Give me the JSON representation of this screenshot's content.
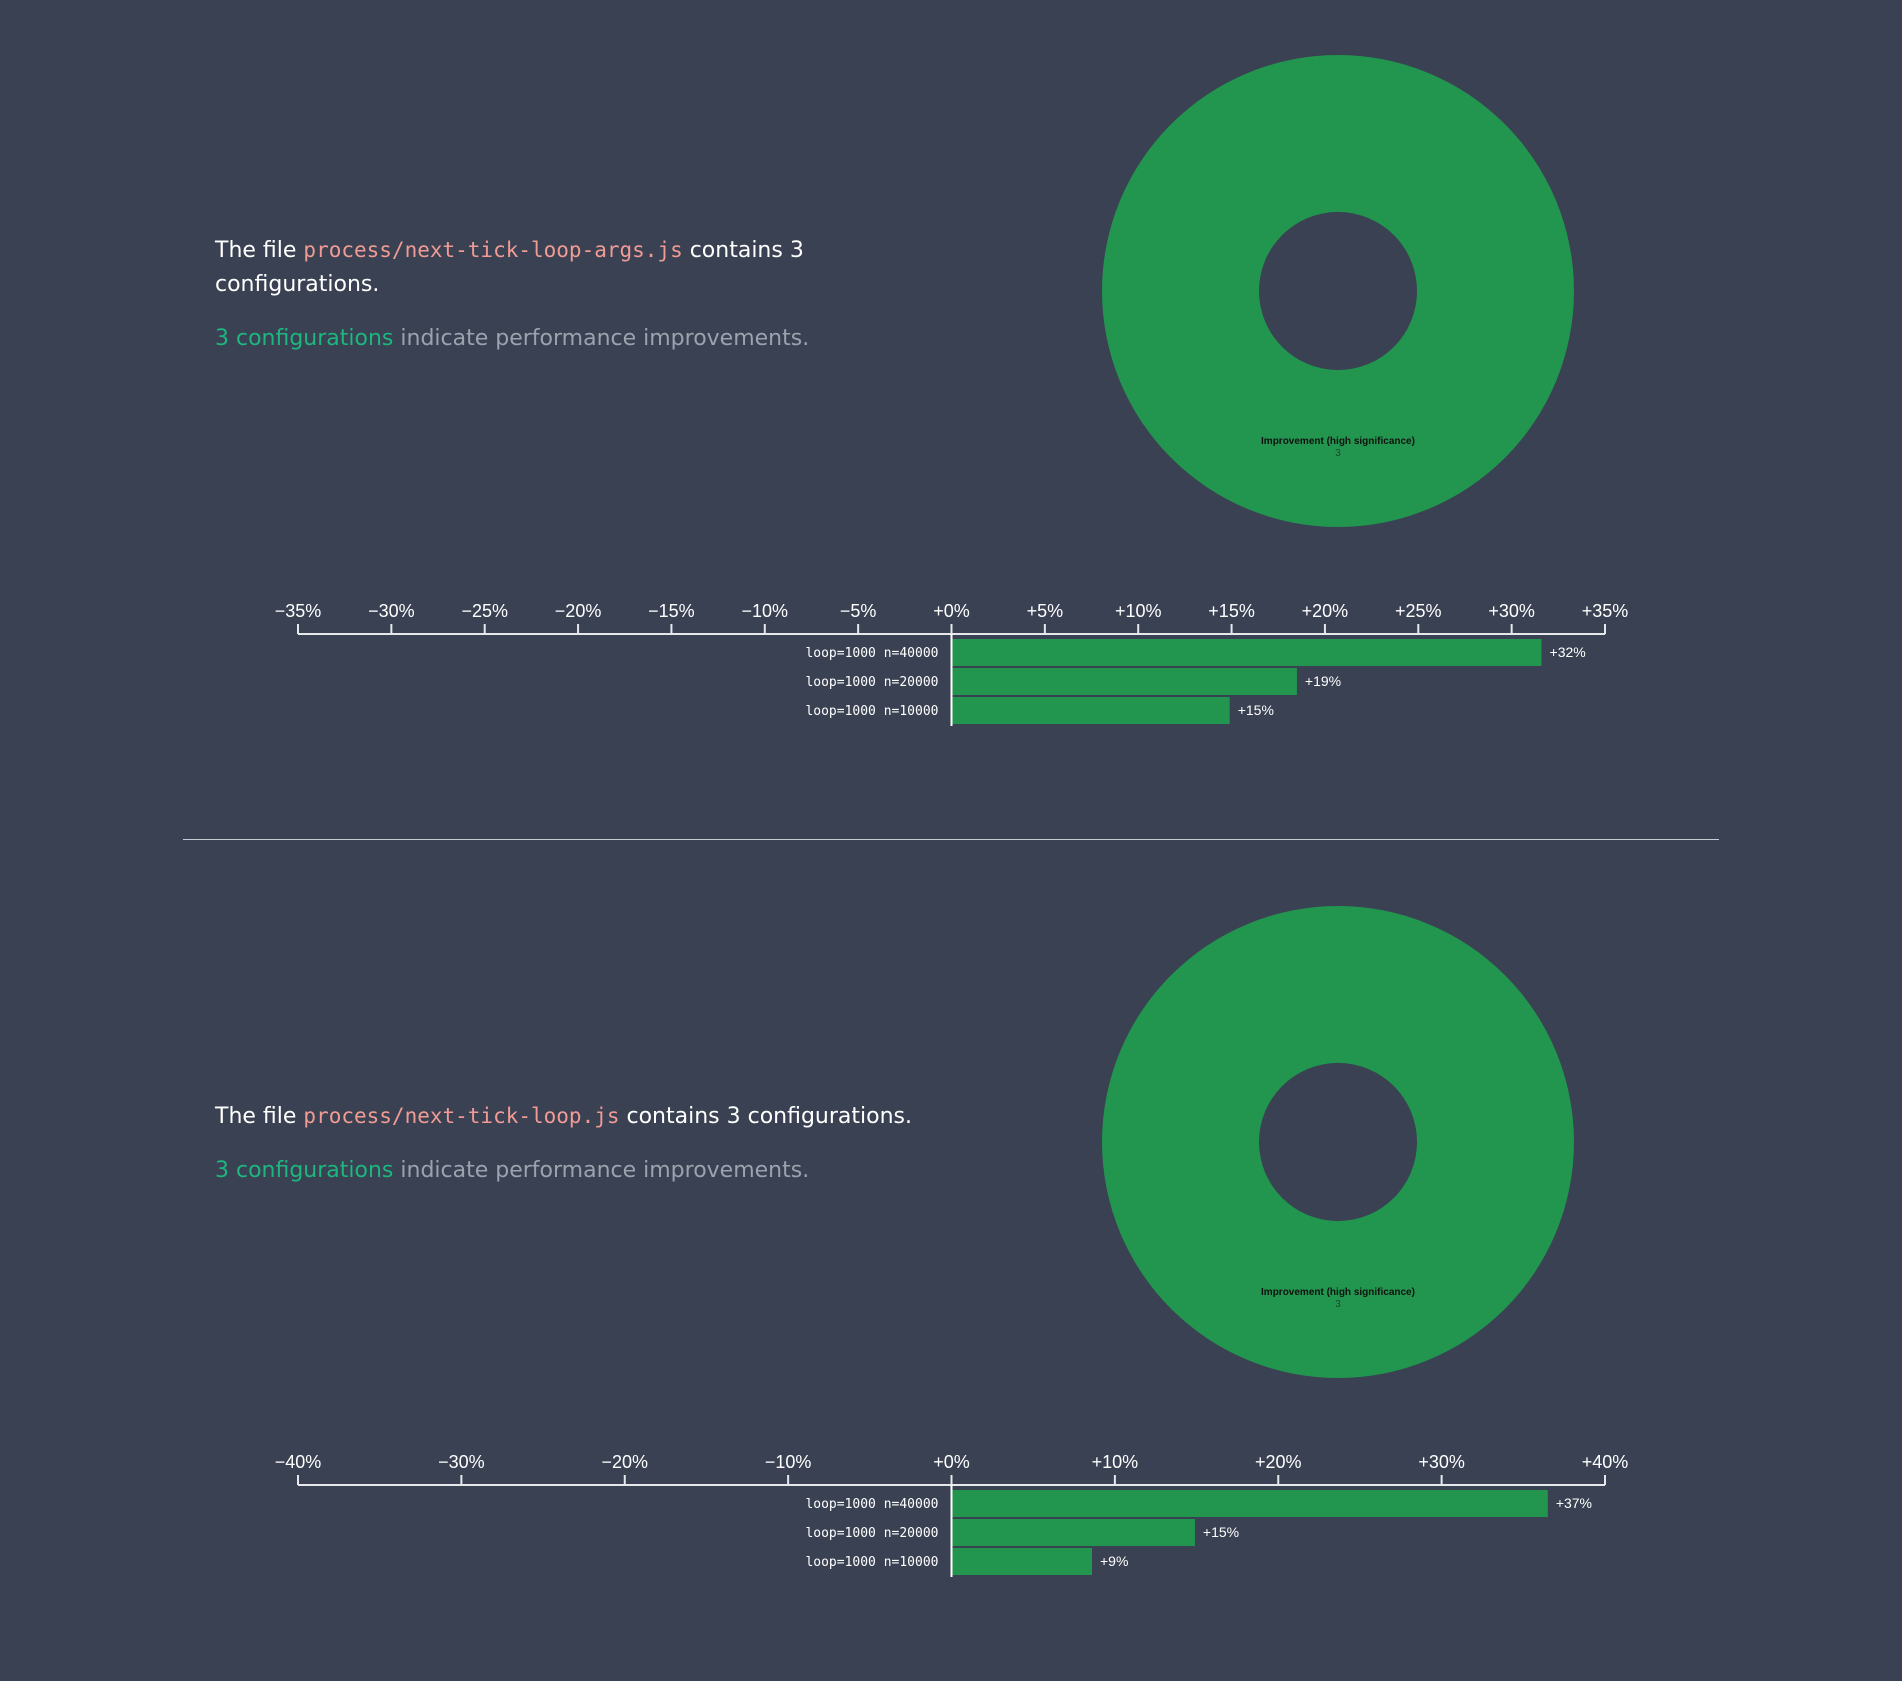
{
  "colors": {
    "background": "#394152",
    "improvement": "#22954f",
    "filename": "#f19b94",
    "highlight": "#1db67f",
    "muted": "#9ca2ae"
  },
  "sections": [
    {
      "text": {
        "prefix": "The file ",
        "filename": "process/next-tick-loop-args.js",
        "suffix": " contains 3 configurations.",
        "highlight": "3 configurations",
        "rest": " indicate performance improvements."
      },
      "chart_data": [
        {
          "type": "pie",
          "donut": true,
          "slices": [
            {
              "label": "Improvement (high significance)",
              "value": 3,
              "color": "#22954f"
            }
          ]
        },
        {
          "type": "bar",
          "orientation": "horizontal",
          "categories": [
            "loop=1000 n=40000",
            "loop=1000 n=20000",
            "loop=1000 n=10000"
          ],
          "values": [
            31.6,
            18.5,
            14.9
          ],
          "data_labels": [
            "+32%",
            "+19%",
            "+15%"
          ],
          "xlim": [
            -35,
            35
          ],
          "ticks": [
            "−35%",
            "−30%",
            "−25%",
            "−20%",
            "−15%",
            "−10%",
            "−5%",
            "+0%",
            "+5%",
            "+10%",
            "+15%",
            "+20%",
            "+25%",
            "+30%",
            "+35%"
          ],
          "tick_values": [
            -35,
            -30,
            -25,
            -20,
            -15,
            -10,
            -5,
            0,
            5,
            10,
            15,
            20,
            25,
            30,
            35
          ]
        }
      ]
    },
    {
      "text": {
        "prefix": "The file ",
        "filename": "process/next-tick-loop.js",
        "suffix": " contains 3 configurations.",
        "highlight": "3 configurations",
        "rest": " indicate performance improvements."
      },
      "chart_data": [
        {
          "type": "pie",
          "donut": true,
          "slices": [
            {
              "label": "Improvement (high significance)",
              "value": 3,
              "color": "#22954f"
            }
          ]
        },
        {
          "type": "bar",
          "orientation": "horizontal",
          "categories": [
            "loop=1000 n=40000",
            "loop=1000 n=20000",
            "loop=1000 n=10000"
          ],
          "values": [
            36.5,
            14.9,
            8.6
          ],
          "data_labels": [
            "+37%",
            "+15%",
            "+9%"
          ],
          "xlim": [
            -40,
            40
          ],
          "ticks": [
            "−40%",
            "−30%",
            "−20%",
            "−10%",
            "+0%",
            "+10%",
            "+20%",
            "+30%",
            "+40%"
          ],
          "tick_values": [
            -40,
            -30,
            -20,
            -10,
            0,
            10,
            20,
            30,
            40
          ]
        }
      ]
    }
  ]
}
